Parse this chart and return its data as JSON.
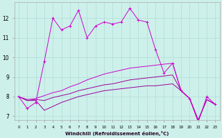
{
  "xlabel": "Windchill (Refroidissement éolien,°C)",
  "background_color": "#cdf0ea",
  "grid_color": "#b0ddd8",
  "line_color": "#cc00cc",
  "line_color2": "#990099",
  "x_values": [
    0,
    1,
    2,
    3,
    4,
    5,
    6,
    7,
    8,
    9,
    10,
    11,
    12,
    13,
    14,
    15,
    16,
    17,
    18,
    19,
    20,
    21,
    22,
    23
  ],
  "ylim": [
    6.8,
    12.8
  ],
  "xlim": [
    -0.5,
    23.5
  ],
  "series1": [
    8.0,
    7.4,
    7.7,
    9.8,
    12.0,
    11.4,
    11.6,
    12.4,
    11.0,
    11.6,
    11.8,
    11.7,
    11.8,
    12.5,
    11.9,
    11.8,
    10.4,
    9.2,
    9.7,
    8.3,
    7.9,
    6.7,
    8.0,
    7.6
  ],
  "series2": [
    8.0,
    7.8,
    7.8,
    7.3,
    7.5,
    7.7,
    7.85,
    8.0,
    8.1,
    8.2,
    8.3,
    8.35,
    8.4,
    8.45,
    8.5,
    8.55,
    8.55,
    8.6,
    8.65,
    8.3,
    7.9,
    6.8,
    7.85,
    7.6
  ],
  "series3": [
    8.0,
    7.8,
    7.85,
    7.8,
    7.95,
    8.05,
    8.15,
    8.3,
    8.4,
    8.5,
    8.6,
    8.65,
    8.75,
    8.85,
    8.9,
    8.95,
    9.0,
    9.05,
    9.1,
    8.3,
    7.9,
    6.8,
    7.85,
    7.6
  ],
  "series4": [
    8.0,
    7.85,
    7.9,
    8.05,
    8.2,
    8.3,
    8.5,
    8.65,
    8.85,
    9.0,
    9.15,
    9.25,
    9.35,
    9.45,
    9.5,
    9.55,
    9.6,
    9.65,
    9.7,
    8.3,
    7.9,
    6.8,
    7.85,
    7.6
  ],
  "yticks": [
    7,
    8,
    9,
    10,
    11,
    12
  ],
  "xticks": [
    0,
    1,
    2,
    3,
    4,
    5,
    6,
    7,
    8,
    9,
    10,
    11,
    12,
    13,
    14,
    15,
    16,
    17,
    18,
    19,
    20,
    21,
    22,
    23
  ]
}
